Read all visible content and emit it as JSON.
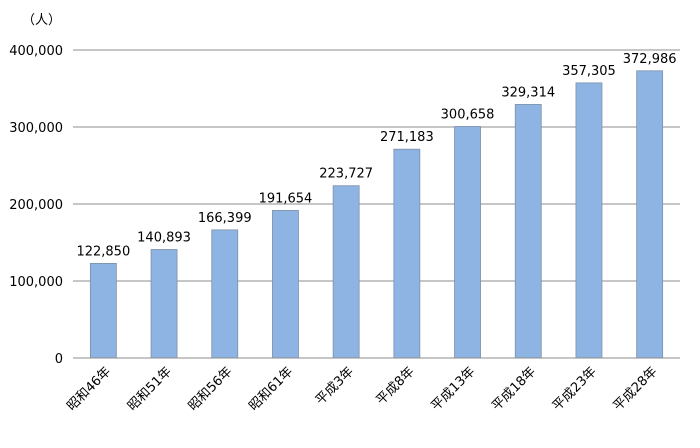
{
  "chart_data": {
    "type": "bar",
    "unit_label": "（人）",
    "categories": [
      "昭和46年",
      "昭和51年",
      "昭和56年",
      "昭和61年",
      "平成3年",
      "平成8年",
      "平成13年",
      "平成18年",
      "平成23年",
      "平成28年"
    ],
    "values": [
      122850,
      140893,
      166399,
      191654,
      223727,
      271183,
      300658,
      329314,
      357305,
      372986
    ],
    "value_labels": [
      "122,850",
      "140,893",
      "166,399",
      "191,654",
      "223,727",
      "271,183",
      "300,658",
      "329,314",
      "357,305",
      "372,986"
    ],
    "yticks": [
      0,
      100000,
      200000,
      300000,
      400000
    ],
    "ytick_labels": [
      "0",
      "100,000",
      "200,000",
      "300,000",
      "400,000"
    ],
    "ylim": [
      0,
      400000
    ],
    "grid": true,
    "bar_color": "#8eb4e3",
    "bar_stroke": "#7d8fa8"
  }
}
